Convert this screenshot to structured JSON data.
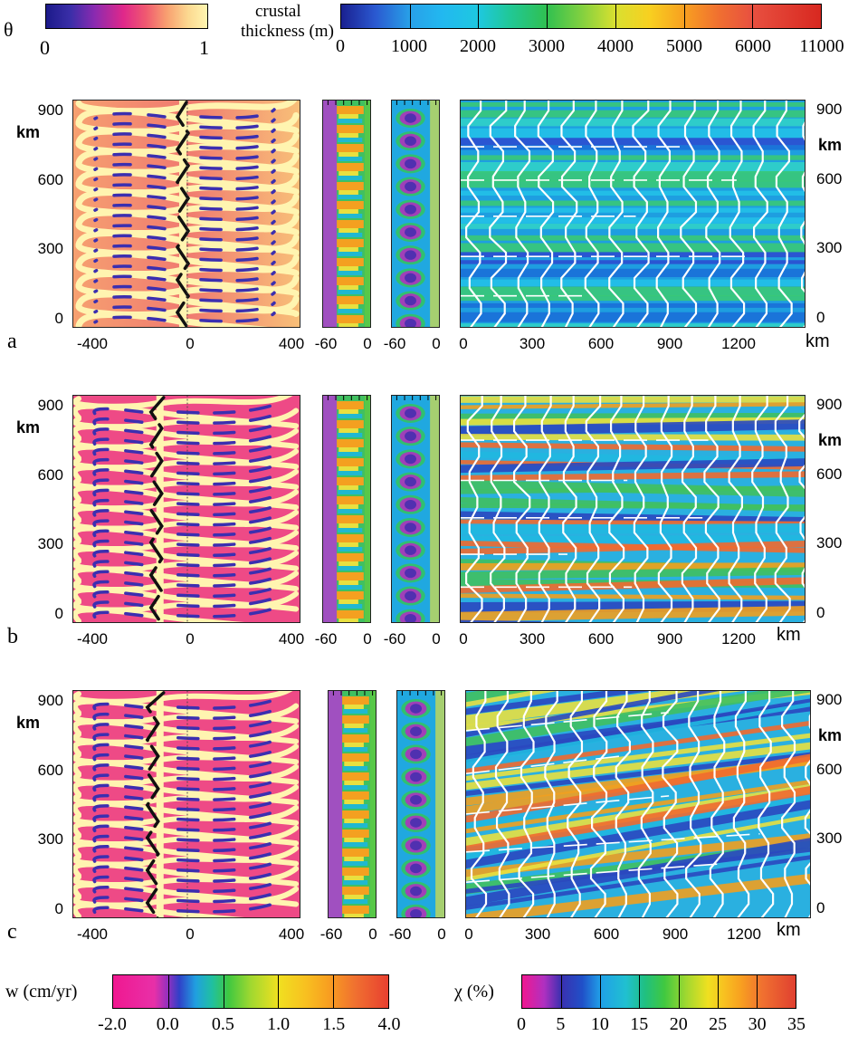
{
  "colorbars": {
    "theta": {
      "symbol": "θ",
      "min": "0",
      "max": "1"
    },
    "crustal": {
      "label_line1": "crustal",
      "label_line2": "thickness (m)",
      "ticks": [
        "0",
        "1000",
        "2000",
        "3000",
        "4000",
        "5000",
        "6000",
        "11000"
      ]
    },
    "w": {
      "label": "w (cm/yr)",
      "ticks": [
        "-2.0",
        "0.0",
        "0.5",
        "1.0",
        "1.5",
        "4.0"
      ]
    },
    "chi": {
      "label": "χ (%)",
      "ticks": [
        "0",
        "5",
        "10",
        "15",
        "20",
        "25",
        "30",
        "35"
      ]
    }
  },
  "rows": [
    {
      "letter": "a",
      "left_y_ticks": [
        "900",
        "600",
        "300",
        "0"
      ],
      "left_x_ticks": [
        "-400",
        "0",
        "400"
      ],
      "strip_x_ticks": [
        "-60",
        "0",
        "-60",
        "0"
      ],
      "right_x_ticks": [
        "0",
        "300",
        "600",
        "900",
        "1200"
      ],
      "right_y_ticks": [
        "900",
        "600",
        "300",
        "0"
      ],
      "km_label": "km"
    },
    {
      "letter": "b",
      "left_y_ticks": [
        "900",
        "600",
        "300",
        "0"
      ],
      "left_x_ticks": [
        "-400",
        "0",
        "400"
      ],
      "strip_x_ticks": [
        "-60",
        "0",
        "-60",
        "0"
      ],
      "right_x_ticks": [
        "0",
        "300",
        "600",
        "900",
        "1200"
      ],
      "right_y_ticks": [
        "900",
        "600",
        "300",
        "0"
      ],
      "km_label": "km"
    },
    {
      "letter": "c",
      "left_y_ticks": [
        "900",
        "600",
        "300",
        "0"
      ],
      "left_x_ticks": [
        "-400",
        "0",
        "400"
      ],
      "strip_x_ticks": [
        "-60",
        "0",
        "-60",
        "0"
      ],
      "right_x_ticks": [
        "0",
        "300",
        "600",
        "900",
        "1200"
      ],
      "right_y_ticks": [
        "900",
        "600",
        "300",
        "0"
      ],
      "km_label": "km"
    }
  ],
  "colors": {
    "theta_low": "#2a2aa0",
    "theta_mid": "#e8307a",
    "theta_high": "#fff0a0",
    "ridge_line": "#000000",
    "track_line": "#ffffff"
  }
}
